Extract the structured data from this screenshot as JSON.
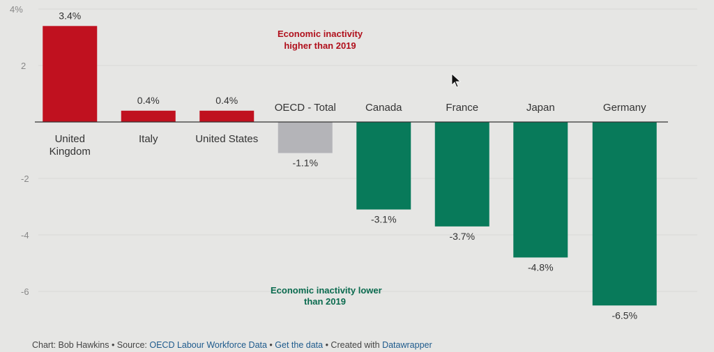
{
  "chart_data": {
    "type": "bar",
    "categories": [
      "United Kingdom",
      "Italy",
      "United States",
      "OECD - Total",
      "Canada",
      "France",
      "Japan",
      "Germany"
    ],
    "category_lines": [
      [
        "United",
        "Kingdom"
      ],
      [
        "Italy"
      ],
      [
        "United States"
      ],
      [
        "OECD - Total"
      ],
      [
        "Canada"
      ],
      [
        "France"
      ],
      [
        "Japan"
      ],
      [
        "Germany"
      ]
    ],
    "values": [
      3.4,
      0.4,
      0.4,
      -1.1,
      -3.1,
      -3.7,
      -4.8,
      -6.5
    ],
    "value_labels": [
      "3.4%",
      "0.4%",
      "0.4%",
      "-1.1%",
      "-3.1%",
      "-3.7%",
      "-4.8%",
      "-6.5%"
    ],
    "ylim": [
      -6.8,
      4
    ],
    "yticks": [
      {
        "v": 4,
        "label": "4%"
      },
      {
        "v": 2,
        "label": "2"
      },
      {
        "v": -2,
        "label": "-2"
      },
      {
        "v": -4,
        "label": "-4"
      },
      {
        "v": -6,
        "label": "-6"
      }
    ],
    "colors": {
      "positive": "#c0111f",
      "negative": "#087a5a",
      "total": "#b4b4b8",
      "axis": "#333333"
    },
    "annotations": [
      {
        "lines": [
          "Economic inactivity",
          "higher than 2019"
        ],
        "color": "#b0101c"
      },
      {
        "lines": [
          "Economic inactivity lower",
          "than 2019"
        ],
        "color": "#0b6b4f"
      }
    ]
  },
  "footer": {
    "chart_by": "Chart: Bob Hawkins",
    "sep": " • ",
    "source_label": "Source: ",
    "source_link": "OECD Labour Workforce Data",
    "get_data": "Get the data",
    "created_with": "Created with ",
    "datawrapper": "Datawrapper"
  }
}
